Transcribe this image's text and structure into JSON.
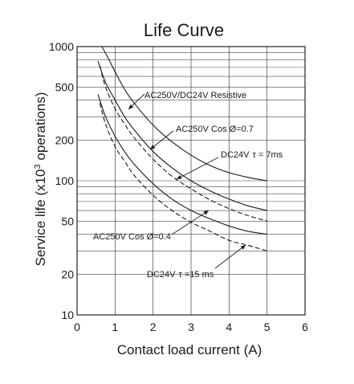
{
  "chart_data": {
    "type": "line",
    "title": "Life Curve",
    "xlabel": "Contact load current (A)",
    "ylabel": {
      "prefix": "Service life (x10",
      "superscript": "3",
      "suffix": " operations)"
    },
    "xlim": [
      0,
      6
    ],
    "ylim": [
      10,
      1000
    ],
    "y_scale": "log",
    "x_ticks": [
      "0",
      "1",
      "2",
      "3",
      "4",
      "5",
      "6"
    ],
    "y_ticks": [
      "10",
      "20",
      "50",
      "100",
      "200",
      "500",
      "1000"
    ],
    "grid": true,
    "series": [
      {
        "name": "AC250V/DC24V Resistive",
        "style": "solid",
        "x": [
          0.65,
          0.8,
          1,
          1.25,
          1.5,
          2,
          2.5,
          3,
          3.5,
          4,
          4.5,
          5
        ],
        "y": [
          1000,
          840,
          650,
          480,
          380,
          260,
          195,
          155,
          130,
          115,
          106,
          100
        ]
      },
      {
        "name": "AC250V Cos Ø=0.7",
        "style": "solid",
        "x": [
          0.55,
          0.75,
          1,
          1.25,
          1.5,
          2,
          2.5,
          3,
          3.5,
          4,
          4.5,
          5
        ],
        "y": [
          780,
          540,
          400,
          300,
          240,
          165,
          125,
          100,
          84,
          73,
          65,
          60
        ]
      },
      {
        "name": "DC24V τ = 7ms",
        "style": "dashed",
        "x": [
          0.6,
          0.75,
          1,
          1.25,
          1.5,
          2,
          2.5,
          3,
          3.5,
          4,
          4.5,
          5
        ],
        "y": [
          720,
          500,
          345,
          265,
          210,
          145,
          108,
          87,
          72,
          62,
          55,
          50
        ]
      },
      {
        "name": "AC250V Cos Ø=0.4",
        "style": "solid",
        "x": [
          0.55,
          0.75,
          1,
          1.25,
          1.5,
          2,
          2.5,
          3,
          3.5,
          4,
          4.5,
          5
        ],
        "y": [
          440,
          300,
          215,
          165,
          133,
          95,
          73,
          60,
          52,
          46,
          42,
          40
        ]
      },
      {
        "name": "DC24V τ =15 ms",
        "style": "dashed",
        "x": [
          0.6,
          0.75,
          1,
          1.25,
          1.5,
          2,
          2.5,
          3,
          3.5,
          4,
          4.5,
          5
        ],
        "y": [
          380,
          265,
          180,
          140,
          110,
          78,
          60,
          49,
          42,
          36,
          33,
          30
        ]
      }
    ],
    "annotations": [
      {
        "parts": [
          "AC250V/DC24V Resistive"
        ],
        "series": 0
      },
      {
        "parts": [
          "AC250V Cos Ø=0.7"
        ],
        "series": 1
      },
      {
        "parts": [
          "DC24V",
          "τ",
          " = 7ms"
        ],
        "series": 2
      },
      {
        "parts": [
          "AC250V Cos Ø=0.4"
        ],
        "series": 3
      },
      {
        "parts": [
          "DC24V",
          "τ",
          " =15 ms"
        ],
        "series": 4
      }
    ]
  }
}
